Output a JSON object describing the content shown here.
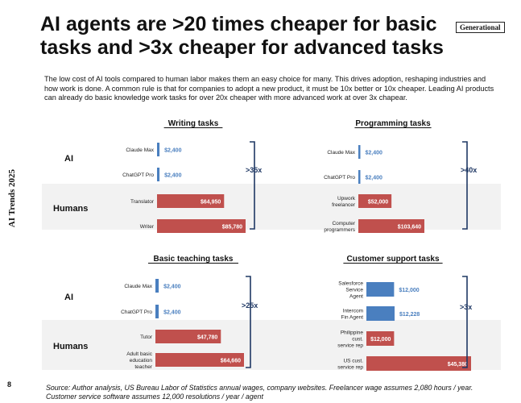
{
  "header": {
    "title": "AI agents are >20 times cheaper for basic tasks and >3x cheaper for advanced tasks",
    "brand": "Generational",
    "side_label": "AI Trends 2025"
  },
  "intro": "The low cost of AI tools compared to human labor makes them an easy choice for many. This drives adoption, reshaping industries and how work is done. A common rule is that for companies to adopt a new product, it must be 10x better or 10x cheaper. Leading AI products can already do basic knowledge work tasks for over 20x cheaper with more advanced work at over 3x chapear.",
  "group_labels": {
    "ai": "AI",
    "humans": "Humans"
  },
  "colors": {
    "ai": "#4a7fbf",
    "human": "#c0504d",
    "band": "#f2f2f2",
    "accent": "#1f3864"
  },
  "chart_data": [
    {
      "type": "bar",
      "title": "Writing tasks",
      "categories": [
        "Claude Max",
        "ChatGPT Pro",
        "Translator",
        "Writer"
      ],
      "values": [
        2400,
        2400,
        64950,
        85780
      ],
      "value_labels": [
        "$2,400",
        "$2,400",
        "$64,950",
        "$85,780"
      ],
      "groups": [
        "ai",
        "ai",
        "human",
        "human"
      ],
      "multiplier": ">35x",
      "xlim": [
        0,
        105000
      ]
    },
    {
      "type": "bar",
      "title": "Programming tasks",
      "categories": [
        "Claude Max",
        "ChatGPT Pro",
        "Upwork freelancer",
        "Computer programmers"
      ],
      "values": [
        2400,
        2400,
        52000,
        103640
      ],
      "value_labels": [
        "$2,400",
        "$2,400",
        "$52,000",
        "$103,640"
      ],
      "groups": [
        "ai",
        "ai",
        "human",
        "human"
      ],
      "multiplier": ">40x",
      "xlim": [
        0,
        105000
      ]
    },
    {
      "type": "bar",
      "title": "Basic teaching tasks",
      "categories": [
        "Claude Max",
        "ChatGPT Pro",
        "Tutor",
        "Adult basic education teacher"
      ],
      "values": [
        2400,
        2400,
        47780,
        64660
      ],
      "value_labels": [
        "$2,400",
        "$2,400",
        "$47,780",
        "$64,660"
      ],
      "groups": [
        "ai",
        "ai",
        "human",
        "human"
      ],
      "multiplier": ">25x",
      "xlim": [
        0,
        105000
      ]
    },
    {
      "type": "bar",
      "title": "Customer support tasks",
      "categories": [
        "Salesforce Service Agent",
        "Intercom Fin Agent",
        "Philippine cust. service rep",
        "US cust. service rep"
      ],
      "values": [
        12000,
        12228,
        12000,
        45380
      ],
      "value_labels": [
        "$12,000",
        "$12,228",
        "$12,000",
        "$45,380"
      ],
      "groups": [
        "ai",
        "ai",
        "human",
        "human"
      ],
      "multiplier": ">3x",
      "xlim": [
        0,
        70000
      ]
    }
  ],
  "footnote": "Source: Author analysis, US Bureau Labor of Statistics annual wages, company websites. Freelancer wage assumes 2,080 hours / year. Customer service software assumes 12,000 resolutions / year / agent",
  "page_number": "8"
}
